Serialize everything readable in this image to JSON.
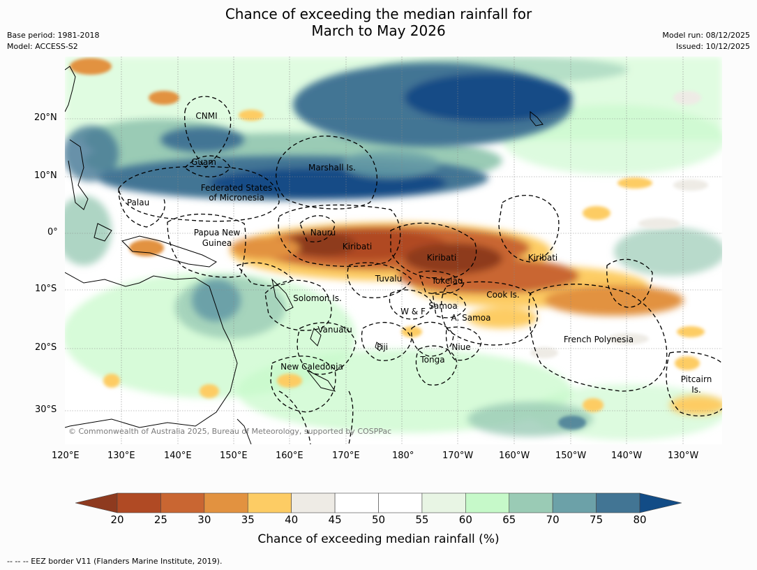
{
  "title": {
    "line1": "Chance of exceeding the median rainfall for",
    "line2": "March to May 2026"
  },
  "meta": {
    "base_period": "Base period: 1981-2018",
    "model": "Model: ACCESS-S2",
    "model_run": "Model run: 08/12/2025",
    "issued": "Issued: 10/12/2025"
  },
  "map": {
    "lat_labels": [
      "20°N",
      "10°N",
      "0°",
      "10°S",
      "20°S",
      "30°S"
    ],
    "lon_labels": [
      "120°E",
      "130°E",
      "140°E",
      "150°E",
      "160°E",
      "170°E",
      "180°",
      "170°W",
      "160°W",
      "150°W",
      "140°W",
      "130°W"
    ],
    "regions": {
      "cnmi": "CNMI",
      "guam": "Guam",
      "marshall": "Marshall Is.",
      "fsm1": "Federated States",
      "fsm2": "of Micronesia",
      "palau": "Palau",
      "png1": "Papua New",
      "png2": "Guinea",
      "nauru": "Nauru",
      "kiribati_w": "Kiribati",
      "kiribati_c": "Kiribati",
      "kiribati_e": "Kiribati",
      "tuvalu": "Tuvalu",
      "tokelau": "Tokelau",
      "cook": "Cook Is.",
      "solomon": "Solomon Is.",
      "wf": "W & F",
      "samoa": "Samoa",
      "asamoa": "A. Samoa",
      "vanuatu": "Vanuatu",
      "fiji": "Fiji",
      "niue": "Niue",
      "tonga": "Tonga",
      "french_poly": "French Polynesia",
      "new_caledonia": "New Caledonia",
      "pitcairn1": "Pitcairn",
      "pitcairn2": "Is."
    },
    "copyright": "© Commonwealth of Australia 2025, Bureau of Meteorology, supported by COSPPac"
  },
  "colorbar": {
    "ticks": [
      "20",
      "25",
      "30",
      "35",
      "40",
      "45",
      "50",
      "55",
      "60",
      "65",
      "70",
      "75",
      "80"
    ],
    "colors": [
      "#8e3a1f",
      "#b04a24",
      "#c96632",
      "#e29240",
      "#fdcc64",
      "#eeebe5",
      "#ffffff",
      "#ffffff",
      "#e8f5e4",
      "#c6f9c9",
      "#9acbb5",
      "#6ca1a8",
      "#427594",
      "#124c86"
    ],
    "title": "Chance of exceeding median rainfall (%)"
  },
  "footer": "-- -- -- EEZ border V11 (Flanders Marine Institute, 2019)."
}
